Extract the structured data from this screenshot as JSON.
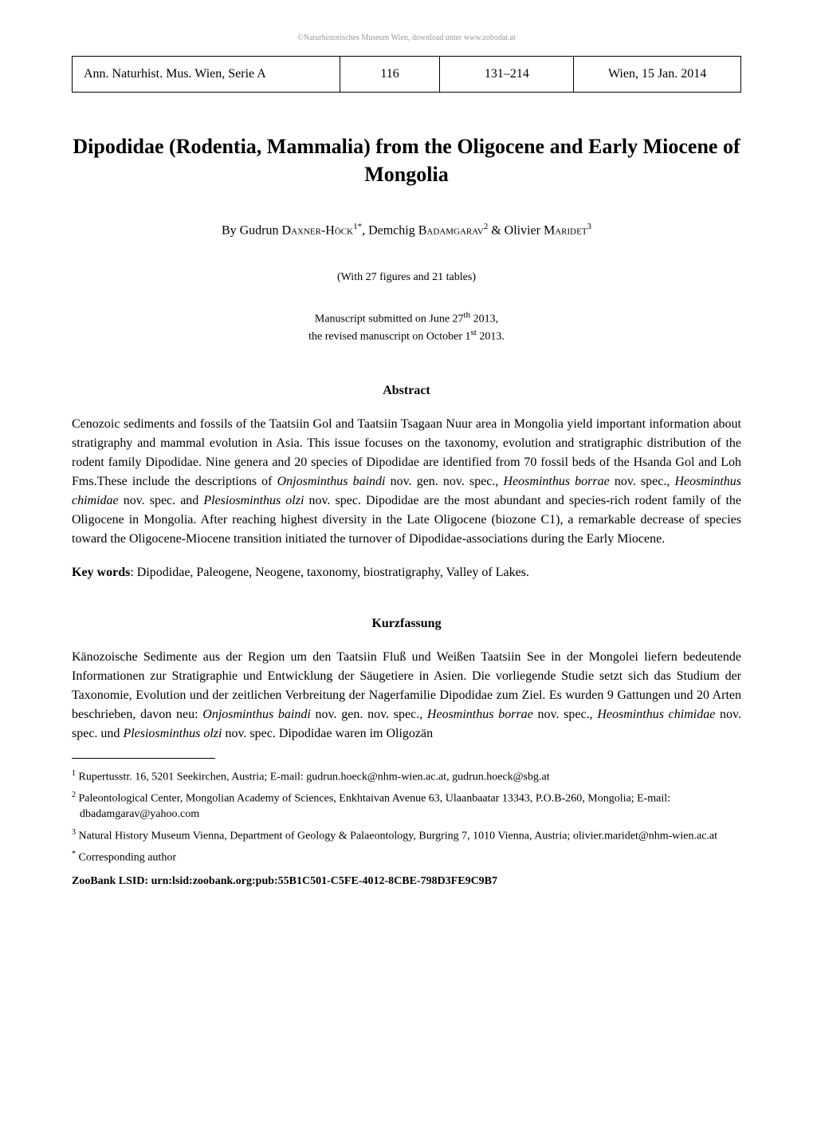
{
  "watermark": "©Naturhistorisches Museum Wien, download unter www.zobodat.at",
  "header": {
    "journal": "Ann. Naturhist. Mus. Wien, Serie A",
    "volume": "116",
    "pages": "131–214",
    "date": "Wien, 15 Jan. 2014"
  },
  "title": "Dipodidae (Rodentia, Mammalia) from the Oligocene and Early Miocene of Mongolia",
  "authors": {
    "prefix": "By Gudrun ",
    "a1_surname": "Daxner-Höck",
    "a1_sup": "1*",
    "sep1": ", Demchig ",
    "a2_surname": "Badamgarav",
    "a2_sup": "2",
    "sep2": " & Olivier ",
    "a3_surname": "Maridet",
    "a3_sup": "3"
  },
  "figures_note": "(With 27 figures and 21 tables)",
  "manuscript_note_line1": "Manuscript submitted on June 27",
  "manuscript_note_sup1": "th",
  "manuscript_note_cont1": " 2013,",
  "manuscript_note_line2": "the revised manuscript on October 1",
  "manuscript_note_sup2": "st",
  "manuscript_note_cont2": " 2013.",
  "abstract": {
    "heading": "Abstract",
    "p1_a": "Cenozoic sediments and fossils of the Taatsiin Gol and Taatsiin Tsagaan Nuur area in Mongolia yield important information about stratigraphy and mammal evolution in Asia. This issue focuses on the taxonomy, evolution and stratigraphic distribution of the rodent family Dipodidae. Nine genera and 20 species of Dipodidae are identified from 70 fossil beds of the Hsanda Gol and Loh Fms.These include the descriptions of ",
    "p1_i1": "Onjosminthus baindi",
    "p1_b": " nov. gen. nov. spec., ",
    "p1_i2": "Heosminthus borrae",
    "p1_c": " nov. spec., ",
    "p1_i3": "Heosminthus chimidae",
    "p1_d": " nov. spec. and ",
    "p1_i4": "Plesiosminthus olzi",
    "p1_e": " nov. spec. Dipodidae are the most abundant and species-rich rodent family of the Oligocene in Mongolia. After reaching highest diversity in the Late Oligocene (biozone C1), a remarkable decrease of species toward the Oligocene-Miocene transition initiated the turnover of Dipodidae-associations during the Early Miocene."
  },
  "keywords": {
    "label": "Key words",
    "text": ": Dipodidae, Paleogene, Neogene, taxonomy, biostratigraphy, Valley of Lakes."
  },
  "kurzfassung": {
    "heading": "Kurzfassung",
    "p1_a": "Känozoische Sedimente aus der Region um den Taatsiin Fluß und Weißen Taatsiin See in der Mongolei liefern bedeutende Informationen zur Stratigraphie und Entwicklung der Säugetiere in Asien. Die vorliegende Studie setzt sich das Studium der Taxonomie, Evolution und der zeitlichen Verbreitung der Nagerfamilie Dipodidae zum Ziel. Es wurden 9 Gattungen und 20 Arten beschrieben, davon neu: ",
    "p1_i1": "Onjosminthus baindi",
    "p1_b": " nov. gen. nov. spec., ",
    "p1_i2": "Heosminthus borrae",
    "p1_c": " nov. spec., ",
    "p1_i3": "Heosminthus chimidae",
    "p1_d": " nov. spec. und ",
    "p1_i4": "Plesiosminthus olzi",
    "p1_e": " nov. spec. Dipodidae waren im Oligozän"
  },
  "footnotes": {
    "f1_sup": "1",
    "f1": " Rupertusstr. 16, 5201 Seekirchen, Austria; E-mail: gudrun.hoeck@nhm-wien.ac.at, gudrun.hoeck@sbg.at",
    "f2_sup": "2",
    "f2": " Paleontological Center, Mongolian Academy of Sciences, Enkhtaivan Avenue 63, Ulaanbaatar 13343, P.O.B-260, Mongolia; E-mail: dbadamgarav@yahoo.com",
    "f3_sup": "3",
    "f3": " Natural History Museum Vienna, Department of Geology & Palaeontology, Burgring 7, 1010 Vienna, Austria; olivier.maridet@nhm-wien.ac.at",
    "f4_sup": "*",
    "f4": " Corresponding author"
  },
  "zoobank": "ZooBank LSID: urn:lsid:zoobank.org:pub:55B1C501-C5FE-4012-8CBE-798D3FE9C9B7"
}
